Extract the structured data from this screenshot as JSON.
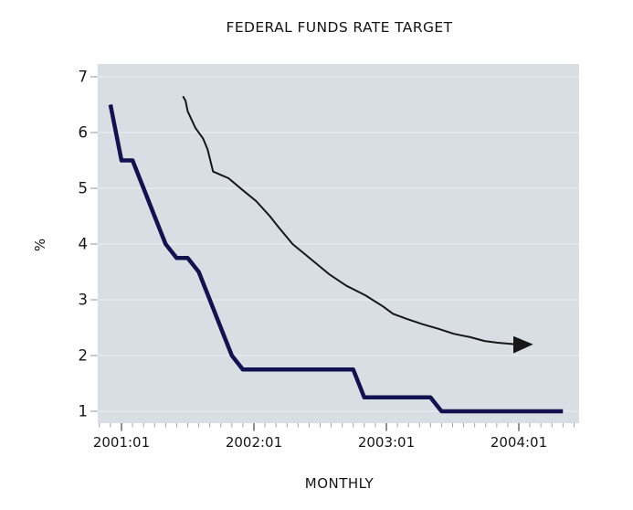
{
  "chart_data": {
    "type": "line",
    "title": "FEDERAL FUNDS RATE TARGET",
    "xlabel": "MONTHLY",
    "ylabel": "%",
    "x_axis": {
      "unit": "month",
      "tick_labels": [
        "2001:01",
        "2002:01",
        "2003:01",
        "2004:01"
      ],
      "tick_label_months": [
        0,
        12,
        24,
        36
      ],
      "minor_tick_month_range": [
        -2,
        41
      ]
    },
    "y_axis": {
      "ticks": [
        1,
        2,
        3,
        4,
        5,
        6,
        7
      ],
      "range": [
        0.78,
        7.22
      ],
      "gridlines": true
    },
    "series": [
      {
        "name": "federal funds rate target",
        "color": "#12124e",
        "stroke_width": 4.5,
        "points": [
          [
            "2000:12",
            6.5
          ],
          [
            "2001:01",
            5.5
          ],
          [
            "2001:02",
            5.5
          ],
          [
            "2001:03",
            5.0
          ],
          [
            "2001:04",
            4.5
          ],
          [
            "2001:05",
            4.0
          ],
          [
            "2001:06",
            3.75
          ],
          [
            "2001:07",
            3.75
          ],
          [
            "2001:08",
            3.5
          ],
          [
            "2001:09",
            3.0
          ],
          [
            "2001:10",
            2.5
          ],
          [
            "2001:11",
            2.0
          ],
          [
            "2001:12",
            1.75
          ],
          [
            "2002:01",
            1.75
          ],
          [
            "2002:02",
            1.75
          ],
          [
            "2002:03",
            1.75
          ],
          [
            "2002:04",
            1.75
          ],
          [
            "2002:05",
            1.75
          ],
          [
            "2002:06",
            1.75
          ],
          [
            "2002:07",
            1.75
          ],
          [
            "2002:08",
            1.75
          ],
          [
            "2002:09",
            1.75
          ],
          [
            "2002:10",
            1.75
          ],
          [
            "2002:11",
            1.25
          ],
          [
            "2002:12",
            1.25
          ],
          [
            "2003:01",
            1.25
          ],
          [
            "2003:02",
            1.25
          ],
          [
            "2003:03",
            1.25
          ],
          [
            "2003:04",
            1.25
          ],
          [
            "2003:05",
            1.25
          ],
          [
            "2003:06",
            1.0
          ],
          [
            "2003:07",
            1.0
          ],
          [
            "2003:08",
            1.0
          ],
          [
            "2003:09",
            1.0
          ],
          [
            "2003:10",
            1.0
          ],
          [
            "2003:11",
            1.0
          ],
          [
            "2003:12",
            1.0
          ],
          [
            "2004:01",
            1.0
          ],
          [
            "2004:02",
            1.0
          ],
          [
            "2004:03",
            1.0
          ],
          [
            "2004:04",
            1.0
          ],
          [
            "2004:05",
            1.0
          ]
        ]
      }
    ],
    "annotation": {
      "name": "downward trend arrow",
      "color": "#17171a",
      "stroke_width": 2,
      "points_month_value": [
        [
          5.6,
          6.64
        ],
        [
          5.8,
          6.57
        ],
        [
          6.0,
          6.38
        ],
        [
          6.7,
          6.08
        ],
        [
          7.4,
          5.89
        ],
        [
          7.8,
          5.7
        ],
        [
          8.3,
          5.3
        ],
        [
          8.9,
          5.25
        ],
        [
          9.7,
          5.18
        ],
        [
          10.9,
          4.98
        ],
        [
          12.2,
          4.77
        ],
        [
          13.4,
          4.51
        ],
        [
          14.2,
          4.31
        ],
        [
          15.5,
          4.0
        ],
        [
          17.1,
          3.74
        ],
        [
          18.8,
          3.46
        ],
        [
          20.4,
          3.25
        ],
        [
          22.1,
          3.08
        ],
        [
          23.7,
          2.88
        ],
        [
          24.6,
          2.75
        ],
        [
          25.8,
          2.66
        ],
        [
          27.3,
          2.56
        ],
        [
          28.7,
          2.48
        ],
        [
          30.1,
          2.39
        ],
        [
          31.6,
          2.33
        ],
        [
          32.9,
          2.26
        ],
        [
          34.1,
          2.23
        ],
        [
          35.3,
          2.21
        ],
        [
          36.8,
          2.18
        ]
      ],
      "arrowhead_month_value": [
        [
          35.5,
          2.35
        ],
        [
          35.5,
          2.04
        ],
        [
          37.3,
          2.2
        ]
      ]
    },
    "colors": {
      "plot_background": "#d9dde4",
      "gridline": "#e9ecf0",
      "axis_tick_minor": "#9aa0a8",
      "axis_tick_major": "#5a5f66",
      "y_tick": "#b4b8bf",
      "text": "#161616"
    }
  }
}
